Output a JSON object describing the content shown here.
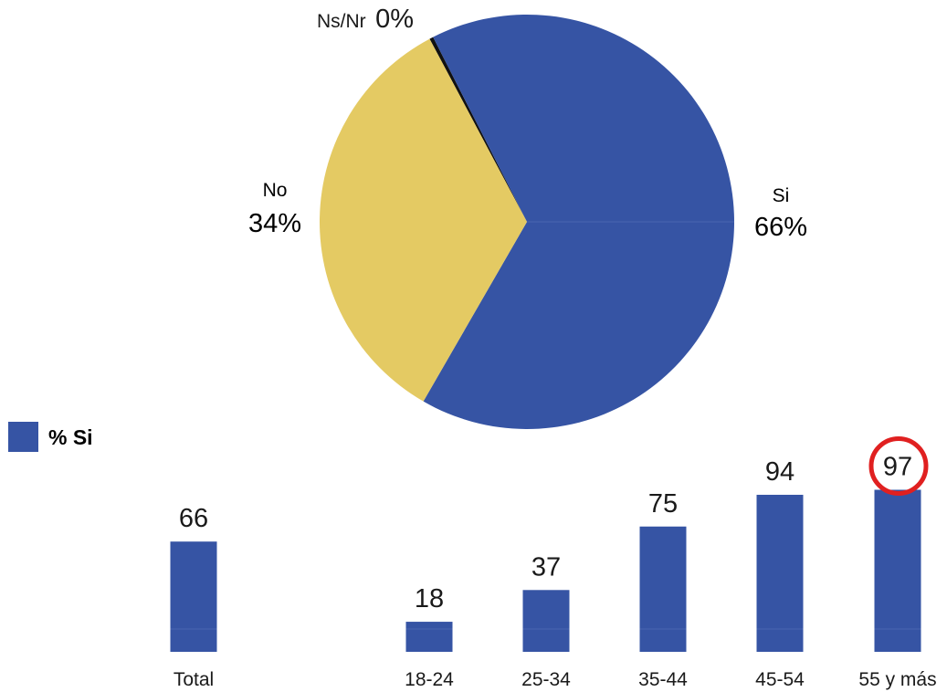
{
  "chart_data": [
    {
      "type": "pie",
      "slices": [
        {
          "label": "Si",
          "value_label": "66%",
          "value": 66,
          "color": "#3654a4"
        },
        {
          "label": "No",
          "value_label": "34%",
          "value": 34,
          "color": "#e4ca63"
        },
        {
          "label": "Ns/Nr",
          "value_label": "0%",
          "value": 0.3,
          "color": "#111111"
        }
      ]
    },
    {
      "type": "bar",
      "legend": {
        "label": "% Si",
        "color": "#3654a4",
        "position": "left"
      },
      "categories": [
        "Total",
        "18-24",
        "25-34",
        "35-44",
        "45-54",
        "55 y más"
      ],
      "series": [
        {
          "name": "% Si",
          "values": [
            66,
            18,
            37,
            75,
            94,
            97
          ],
          "value_labels": [
            "66",
            "18",
            "37",
            "75",
            "94",
            "97"
          ],
          "color": "#3654a4"
        }
      ],
      "highlight": {
        "category": "55 y más",
        "color": "#e02020"
      }
    }
  ]
}
